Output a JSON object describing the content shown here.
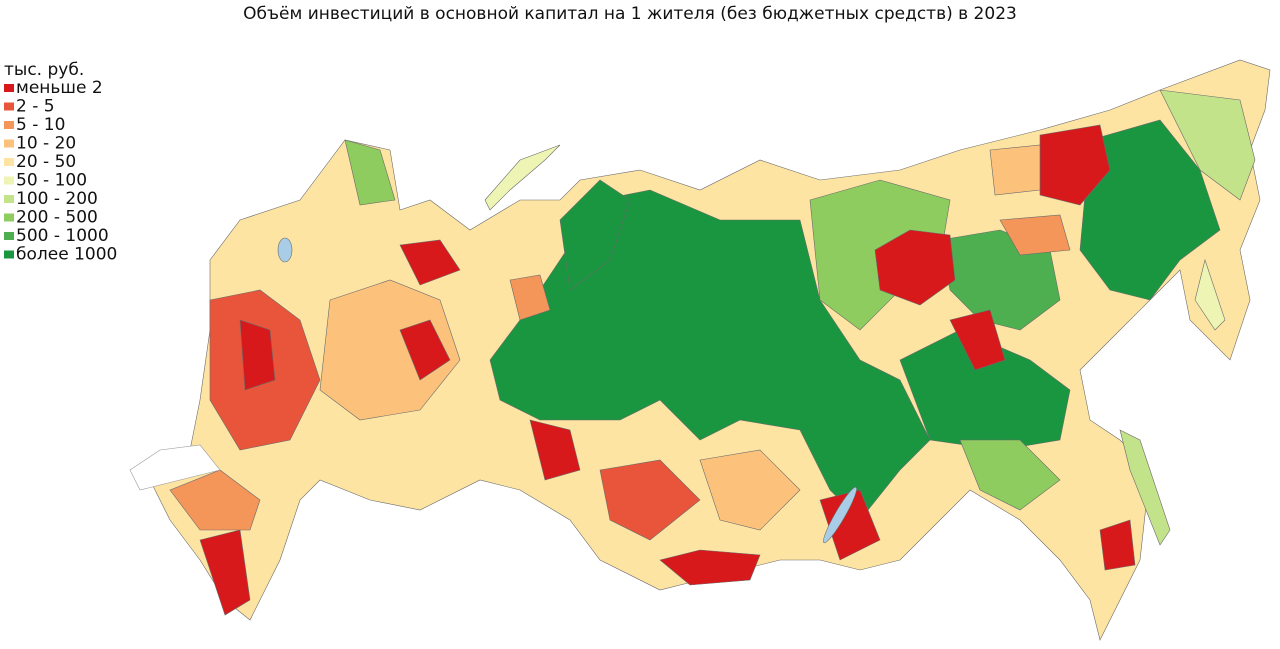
{
  "title": "Объём инвестиций в основной капитал на 1 жителя (без бюджетных средств) в 2023",
  "legend": {
    "title": "тыс. руб.",
    "items": [
      {
        "label": "меньше 2",
        "color": "#d7191c"
      },
      {
        "label": "2 - 5",
        "color": "#e8553b"
      },
      {
        "label": "5 - 10",
        "color": "#f4955a"
      },
      {
        "label": "10 - 20",
        "color": "#fcc27c"
      },
      {
        "label": "20 - 50",
        "color": "#fde4a2"
      },
      {
        "label": "50 - 100",
        "color": "#eef5b4"
      },
      {
        "label": "100 - 200",
        "color": "#c3e38a"
      },
      {
        "label": "200 - 500",
        "color": "#8fcc5f"
      },
      {
        "label": "500 - 1000",
        "color": "#4daf4f"
      },
      {
        "label": "более 1000",
        "color": "#1a9641"
      }
    ]
  }
}
